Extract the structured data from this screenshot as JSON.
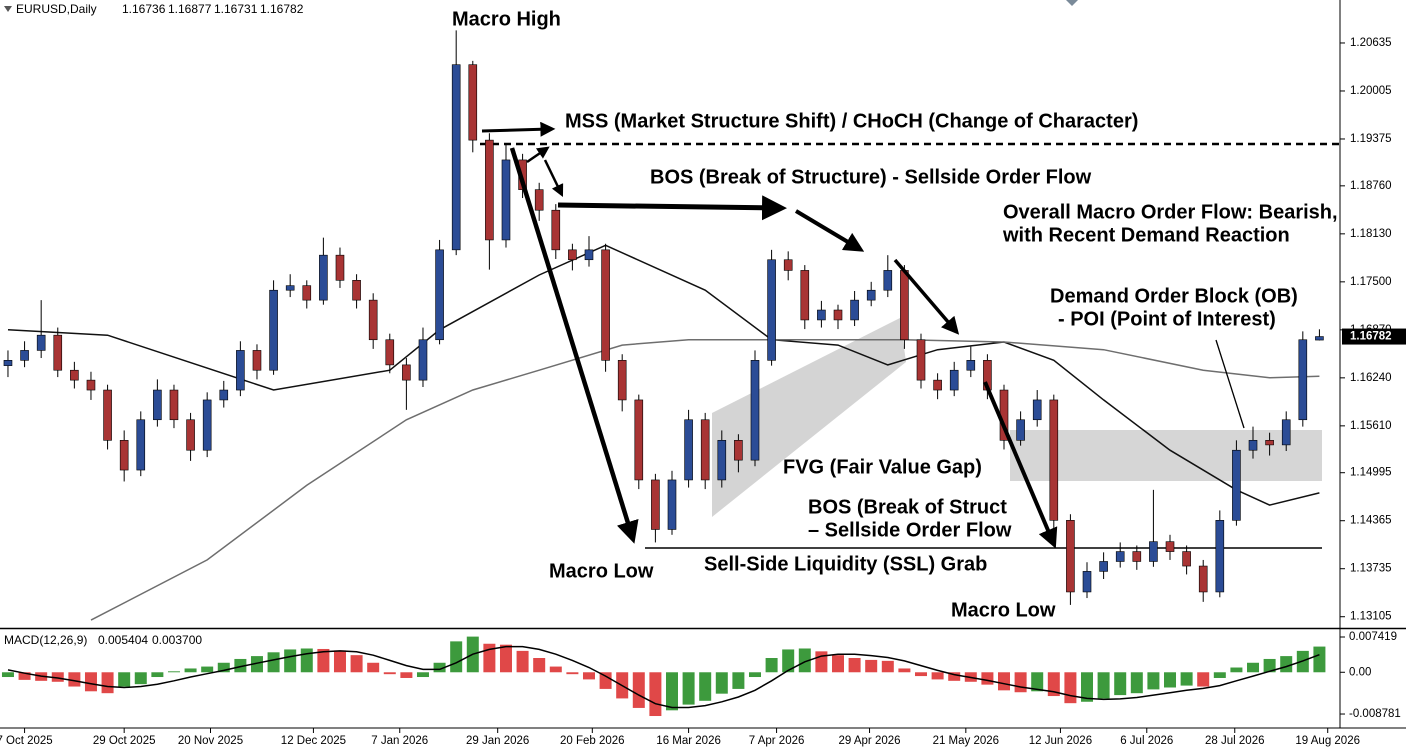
{
  "chart_data": {
    "type": "candlestick",
    "symbol": "EURUSD,Daily",
    "up_color": "#2b4c96",
    "down_color": "#a83434",
    "ylim": [
      1.1297,
      1.21199
    ],
    "yticks": [
      1.20635,
      1.20005,
      1.19375,
      {
        "value": 1.1876,
        "label": "1.18760"
      },
      {
        "value": 1.1813,
        "label": "1.18130"
      },
      {
        "value": 1.175,
        "label": "1.17500"
      },
      {
        "value": 1.1687,
        "label": "1.16870"
      },
      {
        "value": 1.1624,
        "label": "1.16240"
      },
      {
        "value": 1.1561,
        "label": "1.15610"
      },
      1.14995,
      1.14365,
      1.13735,
      1.13105
    ],
    "xlim": [
      -0.48,
      80.24
    ],
    "xticks": [
      {
        "value": 1,
        "label": "7 Oct 2025"
      },
      {
        "value": 7,
        "label": "29 Oct 2025"
      },
      {
        "value": 12.2,
        "label": "20 Nov 2025"
      },
      {
        "value": 18.4,
        "label": "12 Dec 2025"
      },
      {
        "value": 23.6,
        "label": "7 Jan 2026"
      },
      {
        "value": 29.5,
        "label": "29 Jan 2026"
      },
      {
        "value": 35.2,
        "label": "20 Feb 2026"
      },
      {
        "value": 41,
        "label": "16 Mar 2026"
      },
      {
        "value": 46.3,
        "label": "7 Apr 2026"
      },
      {
        "value": 51.9,
        "label": "29 Apr 2026"
      },
      {
        "value": 57.7,
        "label": "21 May 2026"
      },
      {
        "value": 63.4,
        "label": "12 Jun 2026"
      },
      {
        "value": 68.6,
        "label": "6 Jul 2026"
      },
      {
        "value": 73.9,
        "label": "28 Jul 2026"
      },
      {
        "value": 79.5,
        "label": "19 Aug 2026"
      }
    ],
    "ohlc": [
      [
        1.164,
        1.166,
        1.1625,
        1.1647
      ],
      [
        1.1647,
        1.1672,
        1.1638,
        1.166
      ],
      [
        1.166,
        1.1726,
        1.165,
        1.168
      ],
      [
        1.168,
        1.169,
        1.1625,
        1.1634
      ],
      [
        1.1634,
        1.1645,
        1.161,
        1.1621
      ],
      [
        1.1621,
        1.1632,
        1.1595,
        1.1608
      ],
      [
        1.1608,
        1.1615,
        1.153,
        1.1542
      ],
      [
        1.1542,
        1.1555,
        1.1488,
        1.1503
      ],
      [
        1.1503,
        1.158,
        1.1495,
        1.1569
      ],
      [
        1.1569,
        1.1622,
        1.156,
        1.1608
      ],
      [
        1.1608,
        1.1615,
        1.1558,
        1.1569
      ],
      [
        1.1569,
        1.1578,
        1.1515,
        1.1529
      ],
      [
        1.1529,
        1.1605,
        1.152,
        1.1595
      ],
      [
        1.1595,
        1.162,
        1.1585,
        1.1608
      ],
      [
        1.1608,
        1.1672,
        1.16,
        1.166
      ],
      [
        1.166,
        1.1668,
        1.1622,
        1.1634
      ],
      [
        1.1634,
        1.1752,
        1.1628,
        1.1739
      ],
      [
        1.1739,
        1.176,
        1.173,
        1.1745
      ],
      [
        1.1745,
        1.1752,
        1.1715,
        1.1726
      ],
      [
        1.1726,
        1.1808,
        1.172,
        1.1785
      ],
      [
        1.1785,
        1.1795,
        1.1742,
        1.1752
      ],
      [
        1.1752,
        1.176,
        1.1715,
        1.1726
      ],
      [
        1.1726,
        1.1735,
        1.1662,
        1.1674
      ],
      [
        1.1674,
        1.1682,
        1.163,
        1.1641
      ],
      [
        1.1641,
        1.165,
        1.1582,
        1.1621
      ],
      [
        1.1621,
        1.169,
        1.1612,
        1.1674
      ],
      [
        1.1674,
        1.1805,
        1.1668,
        1.1792
      ],
      [
        1.1792,
        1.208,
        1.1785,
        1.2035
      ],
      [
        1.2035,
        1.204,
        1.192,
        1.1936
      ],
      [
        1.1936,
        1.1945,
        1.1766,
        1.1805
      ],
      [
        1.1805,
        1.193,
        1.1795,
        1.191
      ],
      [
        1.191,
        1.1918,
        1.186,
        1.1871
      ],
      [
        1.1871,
        1.188,
        1.183,
        1.1844
      ],
      [
        1.1844,
        1.1852,
        1.178,
        1.1792
      ],
      [
        1.1792,
        1.18,
        1.1765,
        1.1779
      ],
      [
        1.1779,
        1.181,
        1.177,
        1.1792
      ],
      [
        1.1792,
        1.18,
        1.1632,
        1.1647
      ],
      [
        1.1647,
        1.1655,
        1.158,
        1.1595
      ],
      [
        1.1595,
        1.1602,
        1.1478,
        1.149
      ],
      [
        1.149,
        1.1498,
        1.1408,
        1.1425
      ],
      [
        1.1425,
        1.1502,
        1.1418,
        1.149
      ],
      [
        1.149,
        1.1582,
        1.148,
        1.1569
      ],
      [
        1.1569,
        1.1578,
        1.1478,
        1.149
      ],
      [
        1.149,
        1.1555,
        1.148,
        1.1542
      ],
      [
        1.1542,
        1.155,
        1.15,
        1.1516
      ],
      [
        1.1516,
        1.166,
        1.1508,
        1.1647
      ],
      [
        1.1647,
        1.1792,
        1.164,
        1.1779
      ],
      [
        1.1779,
        1.179,
        1.1752,
        1.1765
      ],
      [
        1.1765,
        1.1772,
        1.1688,
        1.17
      ],
      [
        1.17,
        1.1725,
        1.169,
        1.1713
      ],
      [
        1.1713,
        1.172,
        1.1688,
        1.17
      ],
      [
        1.17,
        1.1738,
        1.1692,
        1.1726
      ],
      [
        1.1726,
        1.175,
        1.1718,
        1.1739
      ],
      [
        1.1739,
        1.1785,
        1.173,
        1.1765
      ],
      [
        1.1765,
        1.1772,
        1.1662,
        1.1674
      ],
      [
        1.1674,
        1.1682,
        1.161,
        1.1621
      ],
      [
        1.1621,
        1.163,
        1.1596,
        1.1608
      ],
      [
        1.1608,
        1.1645,
        1.16,
        1.1634
      ],
      [
        1.1634,
        1.1665,
        1.1625,
        1.1647
      ],
      [
        1.1647,
        1.1655,
        1.1596,
        1.1608
      ],
      [
        1.1608,
        1.1615,
        1.153,
        1.1542
      ],
      [
        1.1542,
        1.158,
        1.1535,
        1.1569
      ],
      [
        1.1569,
        1.1608,
        1.156,
        1.1595
      ],
      [
        1.1595,
        1.1602,
        1.1425,
        1.1437
      ],
      [
        1.1437,
        1.1445,
        1.1326,
        1.1343
      ],
      [
        1.1343,
        1.1382,
        1.1335,
        1.137
      ],
      [
        1.137,
        1.1395,
        1.136,
        1.1383
      ],
      [
        1.1383,
        1.1408,
        1.1375,
        1.1396
      ],
      [
        1.1396,
        1.1404,
        1.1372,
        1.1383
      ],
      [
        1.1383,
        1.1477,
        1.1376,
        1.1409
      ],
      [
        1.1409,
        1.1418,
        1.1385,
        1.1396
      ],
      [
        1.1396,
        1.1404,
        1.1366,
        1.1377
      ],
      [
        1.1377,
        1.1385,
        1.133,
        1.1343
      ],
      [
        1.1343,
        1.145,
        1.1336,
        1.1437
      ],
      [
        1.1437,
        1.1542,
        1.143,
        1.1529
      ],
      [
        1.1529,
        1.156,
        1.1518,
        1.1542
      ],
      [
        1.1542,
        1.1552,
        1.1522,
        1.1536
      ],
      [
        1.1536,
        1.158,
        1.1528,
        1.1569
      ],
      [
        1.1569,
        1.1685,
        1.156,
        1.1674
      ],
      [
        1.16736,
        1.16877,
        1.16731,
        1.16782
      ]
    ],
    "moving_averages": [
      {
        "color": "#111111",
        "x": [
          0,
          6,
          16,
          23,
          26,
          32,
          36,
          42,
          46,
          50,
          53,
          56,
          60,
          63,
          66,
          70,
          74,
          76,
          79
        ],
        "values": [
          1.1687,
          1.168,
          1.1608,
          1.1634,
          1.1687,
          1.1759,
          1.1798,
          1.1739,
          1.1674,
          1.1667,
          1.1641,
          1.1661,
          1.1671,
          1.1647,
          1.1595,
          1.1529,
          1.1477,
          1.1457,
          1.1473
        ]
      },
      {
        "color": "#6e6e6e",
        "x": [
          5,
          12,
          18,
          24,
          28,
          32,
          37,
          41,
          54,
          60,
          66,
          72,
          76,
          79
        ],
        "values": [
          1.1306,
          1.1385,
          1.1483,
          1.1569,
          1.1608,
          1.1634,
          1.1667,
          1.1674,
          1.1674,
          1.1671,
          1.1661,
          1.1634,
          1.1624,
          1.1626
        ]
      }
    ],
    "annotations": [
      "Macro High",
      "MSS (Market Structure Shift) / CHoCH (Change of Character)",
      "BOS (Break of Structure) - Sellside Order Flow",
      "Overall Macro Order Flow: Bearish,",
      "with Recent Demand Reaction",
      "Demand Order Block (OB)",
      "- POI (Point of Interest)",
      "FVG (Fair Value Gap)",
      "BOS (Break of Struct",
      "– Sellside Order Flow",
      "Macro Low",
      "Sell-Side Liquidity (SSL) Grab",
      "Macro Low"
    ],
    "macd": {
      "label": "MACD(12,26,9)",
      "readout": [
        0.005404,
        {
          "value": 0.0037,
          "label": "0.003700"
        }
      ],
      "up_color": "#3d9a3d",
      "down_color": "#e04848",
      "signal_color": "#000000",
      "ylim": [
        -0.01172,
        0.00889
      ],
      "yticks": [
        0.007419,
        {
          "value": 0,
          "label": "0.00"
        },
        -0.008781
      ],
      "values": [
        -0.001,
        -0.0016,
        -0.0018,
        -0.002,
        -0.003,
        -0.004,
        -0.0044,
        -0.003,
        -0.0025,
        -0.001,
        0.0002,
        0.0008,
        0.0012,
        0.002,
        0.0028,
        0.0034,
        0.0042,
        0.0048,
        0.005,
        0.0049,
        0.0046,
        0.0036,
        0.002,
        -0.0004,
        -0.0012,
        -0.001,
        0.002,
        0.0065,
        0.0075,
        0.006,
        0.0058,
        0.0045,
        0.003,
        0.0012,
        -0.0004,
        -0.0015,
        -0.0035,
        -0.0055,
        -0.0075,
        -0.0092,
        -0.008,
        -0.0068,
        -0.006,
        -0.0045,
        -0.0035,
        -0.001,
        0.003,
        0.0048,
        0.005,
        0.0044,
        0.0036,
        0.003,
        0.0026,
        0.0024,
        0.0008,
        -0.0008,
        -0.0015,
        -0.0018,
        -0.002,
        -0.0026,
        -0.0038,
        -0.0042,
        -0.004,
        -0.005,
        -0.0065,
        -0.0062,
        -0.0055,
        -0.0048,
        -0.0044,
        -0.0036,
        -0.0032,
        -0.0028,
        -0.003,
        -0.0012,
        0.001,
        0.002,
        0.0028,
        0.0034,
        0.0045,
        0.005404
      ],
      "signal": [
        0.0005,
        -0.0002,
        -0.0008,
        -0.0012,
        -0.0018,
        -0.0024,
        -0.003,
        -0.0032,
        -0.003,
        -0.0025,
        -0.0018,
        -0.001,
        -0.0003,
        0.0004,
        0.0012,
        0.0019,
        0.0026,
        0.0033,
        0.0039,
        0.0043,
        0.0045,
        0.0043,
        0.0036,
        0.0025,
        0.0014,
        0.0006,
        0.0006,
        0.002,
        0.0038,
        0.0048,
        0.0054,
        0.0054,
        0.0048,
        0.0038,
        0.0025,
        0.001,
        -0.0008,
        -0.0028,
        -0.0048,
        -0.0066,
        -0.0074,
        -0.0074,
        -0.007,
        -0.0062,
        -0.0052,
        -0.0038,
        -0.0018,
        0.0004,
        0.0022,
        0.0034,
        0.0038,
        0.0038,
        0.0035,
        0.0031,
        0.0024,
        0.0014,
        0.0004,
        -0.0005,
        -0.0011,
        -0.0017,
        -0.0024,
        -0.0031,
        -0.0036,
        -0.0041,
        -0.0049,
        -0.0055,
        -0.0057,
        -0.0056,
        -0.0053,
        -0.0048,
        -0.0043,
        -0.0038,
        -0.0034,
        -0.0028,
        -0.0018,
        -0.0008,
        0.0002,
        0.0012,
        0.0024,
        0.0037
      ]
    }
  }
}
